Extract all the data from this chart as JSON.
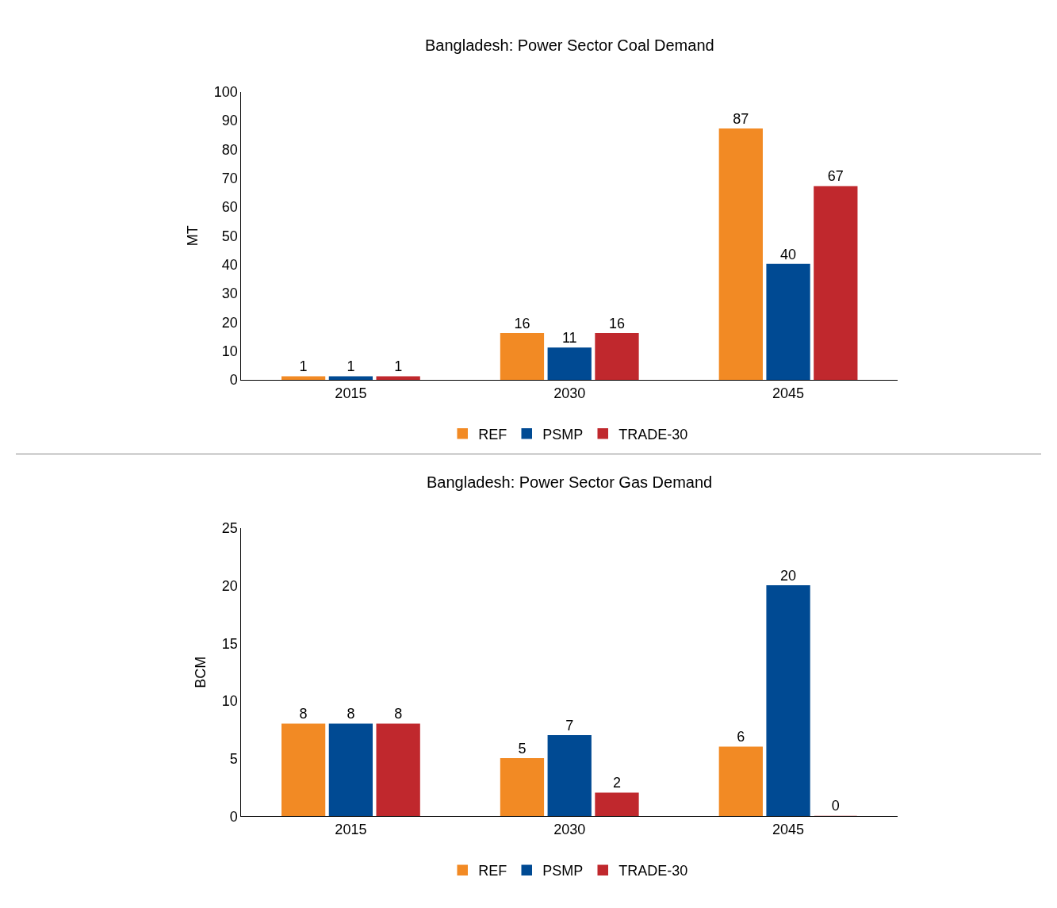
{
  "chart_data": [
    {
      "type": "bar",
      "title": "Bangladesh: Power Sector Coal Demand",
      "ylabel": "MT",
      "categories": [
        "2015",
        "2030",
        "2045"
      ],
      "series": [
        {
          "name": "REF",
          "color": "#f28a24",
          "values": [
            1,
            16,
            87
          ]
        },
        {
          "name": "PSMP",
          "color": "#004a93",
          "values": [
            1,
            11,
            40
          ]
        },
        {
          "name": "TRADE-30",
          "color": "#c0282d",
          "values": [
            1,
            16,
            67
          ]
        }
      ],
      "ylim": [
        0,
        100
      ],
      "yticks": [
        0,
        10,
        20,
        30,
        40,
        50,
        60,
        70,
        80,
        90,
        100
      ],
      "legend": "bottom",
      "data_labels": true
    },
    {
      "type": "bar",
      "title": "Bangladesh: Power Sector Gas Demand",
      "ylabel": "BCM",
      "categories": [
        "2015",
        "2030",
        "2045"
      ],
      "series": [
        {
          "name": "REF",
          "color": "#f28a24",
          "values": [
            8,
            5,
            6
          ]
        },
        {
          "name": "PSMP",
          "color": "#004a93",
          "values": [
            8,
            7,
            20
          ]
        },
        {
          "name": "TRADE-30",
          "color": "#c0282d",
          "values": [
            8,
            2,
            0
          ]
        }
      ],
      "ylim": [
        0,
        25
      ],
      "yticks": [
        0,
        5,
        10,
        15,
        20,
        25
      ],
      "legend": "bottom",
      "data_labels": true
    }
  ]
}
